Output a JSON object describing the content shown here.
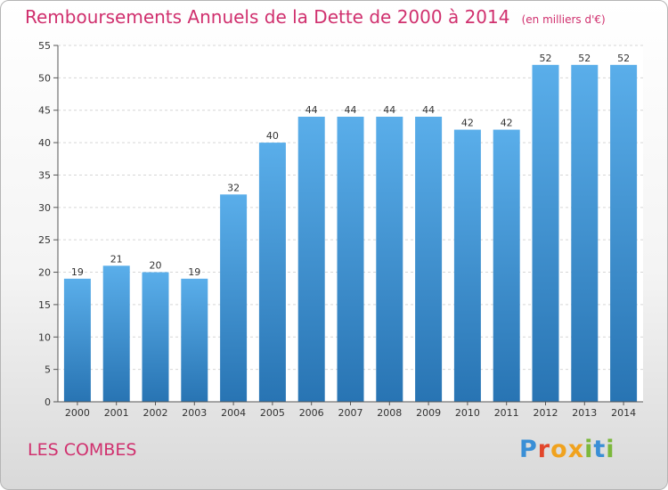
{
  "header": {
    "title": "Remboursements Annuels de la Dette de 2000 à 2014",
    "unit": "(en milliers d'€)"
  },
  "footer": {
    "commune": "LES COMBES",
    "logo_letters": [
      "P",
      "r",
      "o",
      "x",
      "i",
      "t",
      "i"
    ]
  },
  "colors": {
    "title": "#d0306e",
    "bar_light": "#5aaeea",
    "bar_dark": "#2874b3",
    "grid": "#d6d6d6",
    "logo": [
      "#3a8fd6",
      "#e2462b",
      "#f0a21e",
      "#f0a21e",
      "#7cb83c",
      "#3a8fd6",
      "#7cb83c"
    ]
  },
  "chart_data": {
    "type": "bar",
    "title": "Remboursements Annuels de la Dette de 2000 à 2014",
    "subtitle": "(en milliers d'€)",
    "categories": [
      "2000",
      "2001",
      "2002",
      "2003",
      "2004",
      "2005",
      "2006",
      "2007",
      "2008",
      "2009",
      "2010",
      "2011",
      "2012",
      "2013",
      "2014"
    ],
    "values": [
      19,
      21,
      20,
      19,
      32,
      40,
      44,
      44,
      44,
      44,
      42,
      42,
      52,
      52,
      52
    ],
    "ylim": [
      0,
      55
    ],
    "yticks": [
      0,
      5,
      10,
      15,
      20,
      25,
      30,
      35,
      40,
      45,
      50,
      55
    ],
    "grid": true,
    "xlabel": "",
    "ylabel": ""
  }
}
